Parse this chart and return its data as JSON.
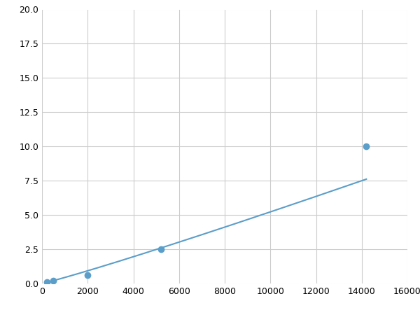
{
  "x": [
    200,
    500,
    2000,
    5200,
    14200
  ],
  "y": [
    0.1,
    0.2,
    0.6,
    2.5,
    10.0
  ],
  "line_color": "#5b9ec9",
  "marker_color": "#5b9ec9",
  "xlim": [
    0,
    16000
  ],
  "ylim": [
    0,
    20
  ],
  "xticks": [
    0,
    2000,
    4000,
    6000,
    8000,
    10000,
    12000,
    14000,
    16000
  ],
  "yticks": [
    0.0,
    2.5,
    5.0,
    7.5,
    10.0,
    12.5,
    15.0,
    17.5,
    20.0
  ],
  "grid_color": "#cccccc",
  "background_color": "#ffffff",
  "marker_size": 6
}
